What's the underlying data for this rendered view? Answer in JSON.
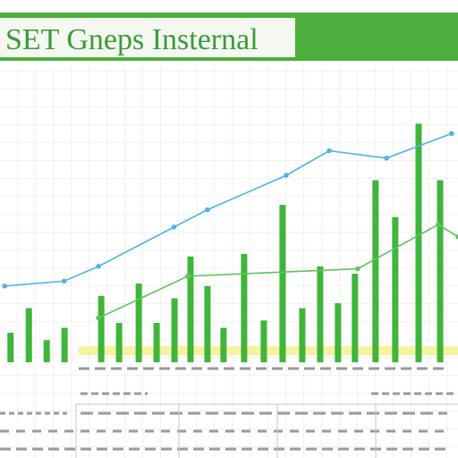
{
  "chart_data": {
    "type": "bar",
    "title": "SET Gneps Insternal",
    "xlim": [
      0,
      100
    ],
    "ylim": [
      0,
      100
    ],
    "bars": {
      "color": "#3fb53a",
      "x": [
        2.3,
        6.3,
        10.2,
        14.1,
        22.1,
        26,
        30.3,
        34.2,
        38.1,
        41.6,
        45.3,
        48.8,
        53.3,
        57.6,
        61.7,
        66,
        69.9,
        73.8,
        77.5,
        82,
        86.3,
        91.4,
        96.1
      ],
      "values": [
        12,
        22,
        9,
        14,
        27,
        16,
        32,
        16,
        26,
        43,
        31,
        14,
        44,
        17,
        64,
        22,
        39,
        24,
        36,
        74,
        59,
        97,
        74
      ]
    },
    "series": [
      {
        "color": "#4fb3e8",
        "x": [
          1,
          14,
          21.5,
          38,
          45.3,
          62.5,
          71.9,
          84.4,
          98.6
        ],
        "values": [
          31,
          33,
          39,
          55,
          62,
          76,
          86,
          83,
          93
        ]
      },
      {
        "color": "#5cc45c",
        "x": [
          21.5,
          41,
          78.1,
          95.7,
          100
        ],
        "values": [
          18,
          35,
          38,
          56,
          51
        ]
      }
    ]
  }
}
